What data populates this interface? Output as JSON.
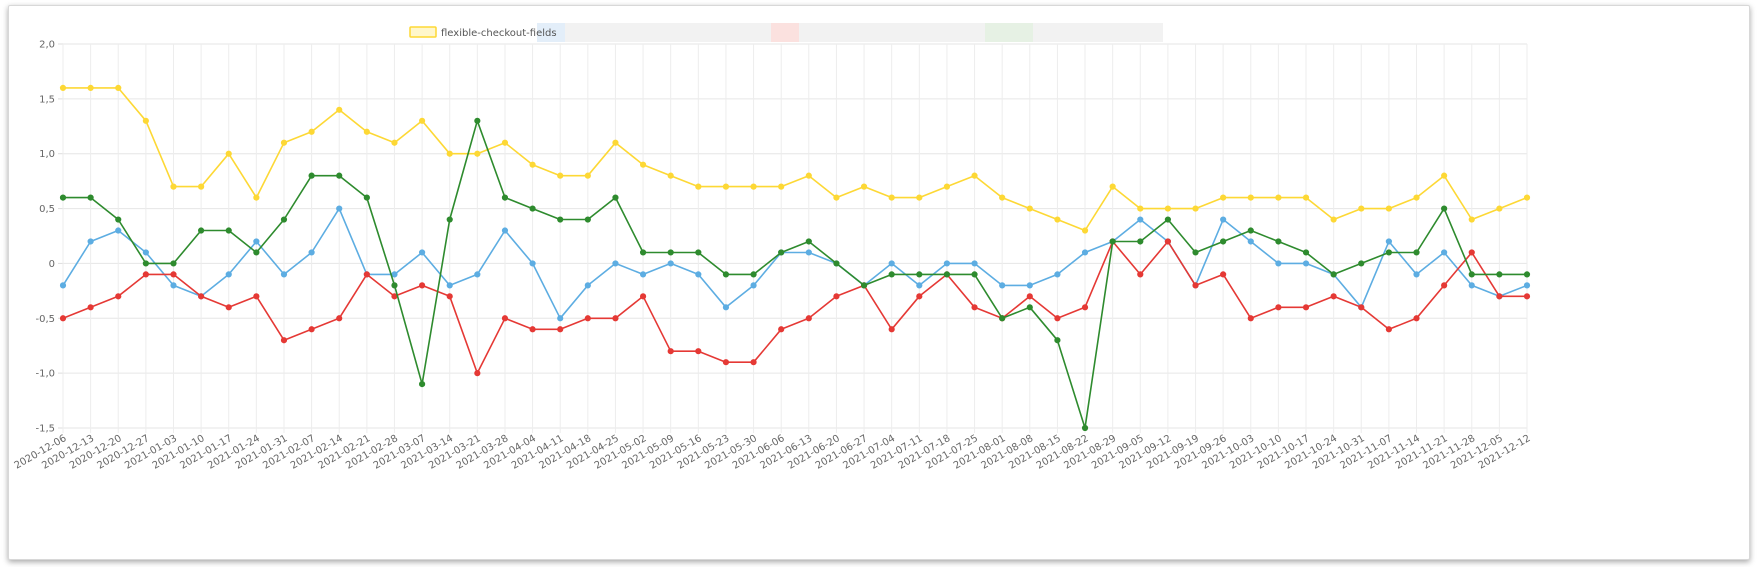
{
  "chart_data": {
    "type": "line",
    "legend": {
      "position": "top",
      "label": "flexible-checkout-fields"
    },
    "ylim": [
      -1.5,
      2.0
    ],
    "yticks": [
      "2,0",
      "1,5",
      "1,0",
      "0,5",
      "0",
      "-0,5",
      "-1,0",
      "-1,5"
    ],
    "ytick_values": [
      2.0,
      1.5,
      1.0,
      0.5,
      0,
      -0.5,
      -1.0,
      -1.5
    ],
    "grid": true,
    "categories": [
      "2020-12-06",
      "2020-12-13",
      "2020-12-20",
      "2020-12-27",
      "2021-01-03",
      "2021-01-10",
      "2021-01-17",
      "2021-01-24",
      "2021-01-31",
      "2021-02-07",
      "2021-02-14",
      "2021-02-21",
      "2021-02-28",
      "2021-03-07",
      "2021-03-14",
      "2021-03-21",
      "2021-03-28",
      "2021-04-04",
      "2021-04-11",
      "2021-04-18",
      "2021-04-25",
      "2021-05-02",
      "2021-05-09",
      "2021-05-16",
      "2021-05-23",
      "2021-05-30",
      "2021-06-06",
      "2021-06-13",
      "2021-06-20",
      "2021-06-27",
      "2021-07-04",
      "2021-07-11",
      "2021-07-18",
      "2021-07-25",
      "2021-08-01",
      "2021-08-08",
      "2021-08-15",
      "2021-08-22",
      "2021-08-29",
      "2021-09-05",
      "2021-09-12",
      "2021-09-19",
      "2021-09-26",
      "2021-10-03",
      "2021-10-10",
      "2021-10-17",
      "2021-10-24",
      "2021-10-31",
      "2021-11-07",
      "2021-11-14",
      "2021-11-21",
      "2021-11-28",
      "2021-12-05",
      "2021-12-12"
    ],
    "series": [
      {
        "name": "flexible-checkout-fields",
        "color": "#fdd835",
        "values": [
          1.6,
          1.6,
          1.6,
          1.3,
          0.7,
          0.7,
          1.0,
          0.6,
          1.1,
          1.2,
          1.4,
          1.2,
          1.1,
          1.3,
          1.0,
          1.0,
          1.1,
          0.9,
          0.8,
          0.8,
          1.1,
          0.9,
          0.8,
          0.7,
          0.7,
          0.7,
          0.7,
          0.8,
          0.6,
          0.7,
          0.6,
          0.6,
          0.7,
          0.8,
          0.6,
          0.5,
          0.4,
          0.3,
          0.7,
          0.5,
          0.5,
          0.5,
          0.6,
          0.6,
          0.6,
          0.6,
          0.4,
          0.5,
          0.5,
          0.6,
          0.8,
          0.4,
          0.5,
          0.6
        ]
      },
      {
        "color": "#5dade2",
        "values": [
          -0.2,
          0.2,
          0.3,
          0.1,
          -0.2,
          -0.3,
          -0.1,
          0.2,
          -0.1,
          0.1,
          0.5,
          -0.1,
          -0.1,
          0.1,
          -0.2,
          -0.1,
          0.3,
          0.0,
          -0.5,
          -0.2,
          0.0,
          -0.1,
          0.0,
          -0.1,
          -0.4,
          -0.2,
          0.1,
          0.1,
          0.0,
          -0.2,
          0.0,
          -0.2,
          0.0,
          0.0,
          -0.2,
          -0.2,
          -0.1,
          0.1,
          0.2,
          0.4,
          0.2,
          -0.2,
          0.4,
          0.2,
          0.0,
          0.0,
          -0.1,
          -0.4,
          0.2,
          -0.1,
          0.1,
          -0.2,
          -0.3,
          -0.2
        ]
      },
      {
        "color": "#e53935",
        "values": [
          -0.5,
          -0.4,
          -0.3,
          -0.1,
          -0.1,
          -0.3,
          -0.4,
          -0.3,
          -0.7,
          -0.6,
          -0.5,
          -0.1,
          -0.3,
          -0.2,
          -0.3,
          -1.0,
          -0.5,
          -0.6,
          -0.6,
          -0.5,
          -0.5,
          -0.3,
          -0.8,
          -0.8,
          -0.9,
          -0.9,
          -0.6,
          -0.5,
          -0.3,
          -0.2,
          -0.6,
          -0.3,
          -0.1,
          -0.4,
          -0.5,
          -0.3,
          -0.5,
          -0.4,
          0.2,
          -0.1,
          0.2,
          -0.2,
          -0.1,
          -0.5,
          -0.4,
          -0.4,
          -0.3,
          -0.4,
          -0.6,
          -0.5,
          -0.2,
          0.1,
          -0.3,
          -0.3
        ]
      },
      {
        "color": "#2e8b2e",
        "values": [
          0.6,
          0.6,
          0.4,
          0.0,
          0.0,
          0.3,
          0.3,
          0.1,
          0.4,
          0.8,
          0.8,
          0.6,
          -0.2,
          -1.1,
          0.4,
          1.3,
          0.6,
          0.5,
          0.4,
          0.4,
          0.6,
          0.1,
          0.1,
          0.1,
          -0.1,
          -0.1,
          0.1,
          0.2,
          0.0,
          -0.2,
          -0.1,
          -0.1,
          -0.1,
          -0.1,
          -0.5,
          -0.4,
          -0.7,
          -1.5,
          0.2,
          0.2,
          0.4,
          0.1,
          0.2,
          0.3,
          0.2,
          0.1,
          -0.1,
          0.0,
          0.1,
          0.1,
          0.5,
          -0.1,
          -0.1,
          -0.1
        ]
      }
    ]
  }
}
